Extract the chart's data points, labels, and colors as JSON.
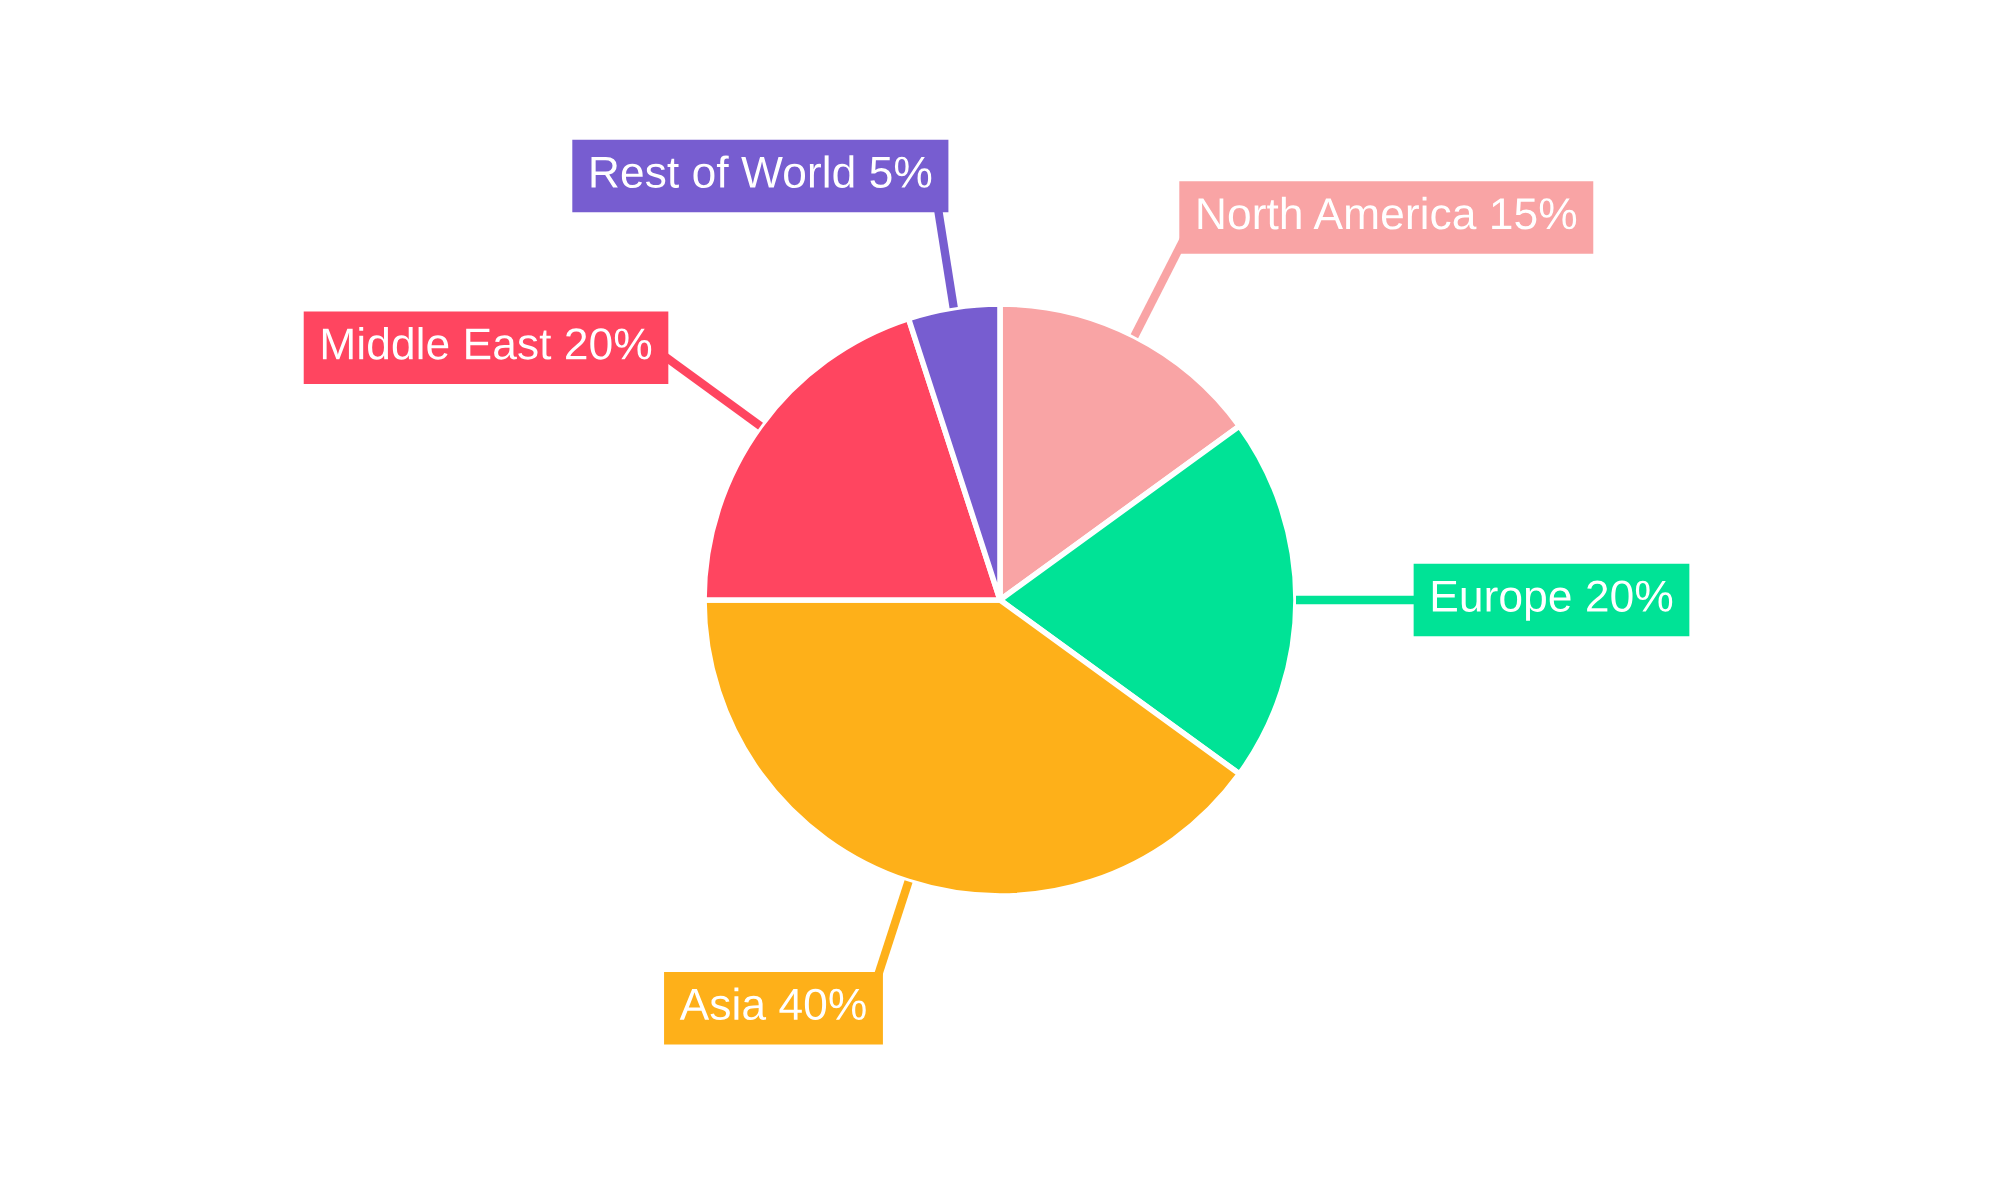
{
  "chart_data": {
    "type": "pie",
    "categories": [
      "North America",
      "Europe",
      "Asia",
      "Middle East",
      "Rest of World"
    ],
    "values": [
      15,
      20,
      40,
      20,
      5
    ],
    "value_labels": [
      "15%",
      "20%",
      "40%",
      "20%",
      "5%"
    ],
    "colors": [
      "#f9a4a5",
      "#00e396",
      "#feb019",
      "#ff4560",
      "#775dd0"
    ],
    "legend": false
  }
}
